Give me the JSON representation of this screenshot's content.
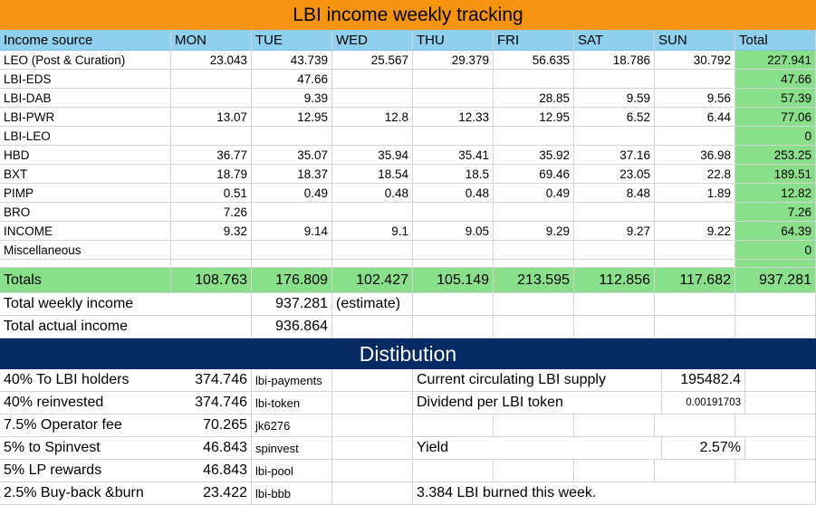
{
  "title": "LBI income weekly tracking",
  "headers": [
    "Income source",
    "MON",
    "TUE",
    "WED",
    "THU",
    "FRI",
    "SAT",
    "SUN",
    "Total"
  ],
  "rows": [
    {
      "source": "LEO (Post & Curation)",
      "values": [
        "23.043",
        "43.739",
        "25.567",
        "29.379",
        "56.635",
        "18.786",
        "30.792"
      ],
      "total": "227.941"
    },
    {
      "source": "LBI-EDS",
      "values": [
        "",
        "47.66",
        "",
        "",
        "",
        "",
        ""
      ],
      "total": "47.66"
    },
    {
      "source": "LBI-DAB",
      "values": [
        "",
        "9.39",
        "",
        "",
        "28.85",
        "9.59",
        "9.56"
      ],
      "total": "57.39"
    },
    {
      "source": "LBI-PWR",
      "values": [
        "13.07",
        "12.95",
        "12.8",
        "12.33",
        "12.95",
        "6.52",
        "6.44"
      ],
      "total": "77.06"
    },
    {
      "source": "LBI-LEO",
      "values": [
        "",
        "",
        "",
        "",
        "",
        "",
        ""
      ],
      "total": "0"
    },
    {
      "source": "HBD",
      "values": [
        "36.77",
        "35.07",
        "35.94",
        "35.41",
        "35.92",
        "37.16",
        "36.98"
      ],
      "total": "253.25"
    },
    {
      "source": "BXT",
      "values": [
        "18.79",
        "18.37",
        "18.54",
        "18.5",
        "69.46",
        "23.05",
        "22.8"
      ],
      "total": "189.51"
    },
    {
      "source": "PIMP",
      "values": [
        "0.51",
        "0.49",
        "0.48",
        "0.48",
        "0.49",
        "8.48",
        "1.89"
      ],
      "total": "12.82"
    },
    {
      "source": "BRO",
      "values": [
        "7.26",
        "",
        "",
        "",
        "",
        "",
        ""
      ],
      "total": "7.26"
    },
    {
      "source": "INCOME",
      "values": [
        "9.32",
        "9.14",
        "9.1",
        "9.05",
        "9.29",
        "9.27",
        "9.22"
      ],
      "total": "64.39"
    },
    {
      "source": "Miscellaneous",
      "values": [
        "",
        "",
        "",
        "",
        "",
        "",
        ""
      ],
      "total": "0"
    }
  ],
  "totals": {
    "label": "Totals",
    "values": [
      "108.763",
      "176.809",
      "102.427",
      "105.149",
      "213.595",
      "112.856",
      "117.682"
    ],
    "total": "937.281"
  },
  "summary": {
    "weekly_label": "Total weekly income",
    "weekly_value": "937.281",
    "weekly_note": "(estimate)",
    "actual_label": "Total actual income",
    "actual_value": "936.864"
  },
  "distribution": {
    "title": "Distibution",
    "items": [
      {
        "label": "40% To LBI holders",
        "value": "374.746",
        "account": "lbi-payments"
      },
      {
        "label": "40% reinvested",
        "value": "374.746",
        "account": "lbi-token"
      },
      {
        "label": "7.5% Operator fee",
        "value": "70.265",
        "account": "jk6276"
      },
      {
        "label": "5% to Spinvest",
        "value": "46.843",
        "account": "spinvest"
      },
      {
        "label": "5% LP rewards",
        "value": "46.843",
        "account": "lbi-pool"
      },
      {
        "label": "2.5% Buy-back &burn",
        "value": "23.422",
        "account": "lbi-bbb"
      }
    ],
    "supply_label": "Current circulating LBI supply",
    "supply_value": "195482.4",
    "dividend_label": "Dividend per LBI token",
    "dividend_value": "0.00191703",
    "yield_label": "Yield",
    "yield_value": "2.57%",
    "burn_note": "3.384 LBI burned this week."
  },
  "colors": {
    "title_bg": "#f7940f",
    "header_bg": "#8fd0ef",
    "total_bg": "#8ae08a",
    "distribution_bg": "#062a63"
  }
}
